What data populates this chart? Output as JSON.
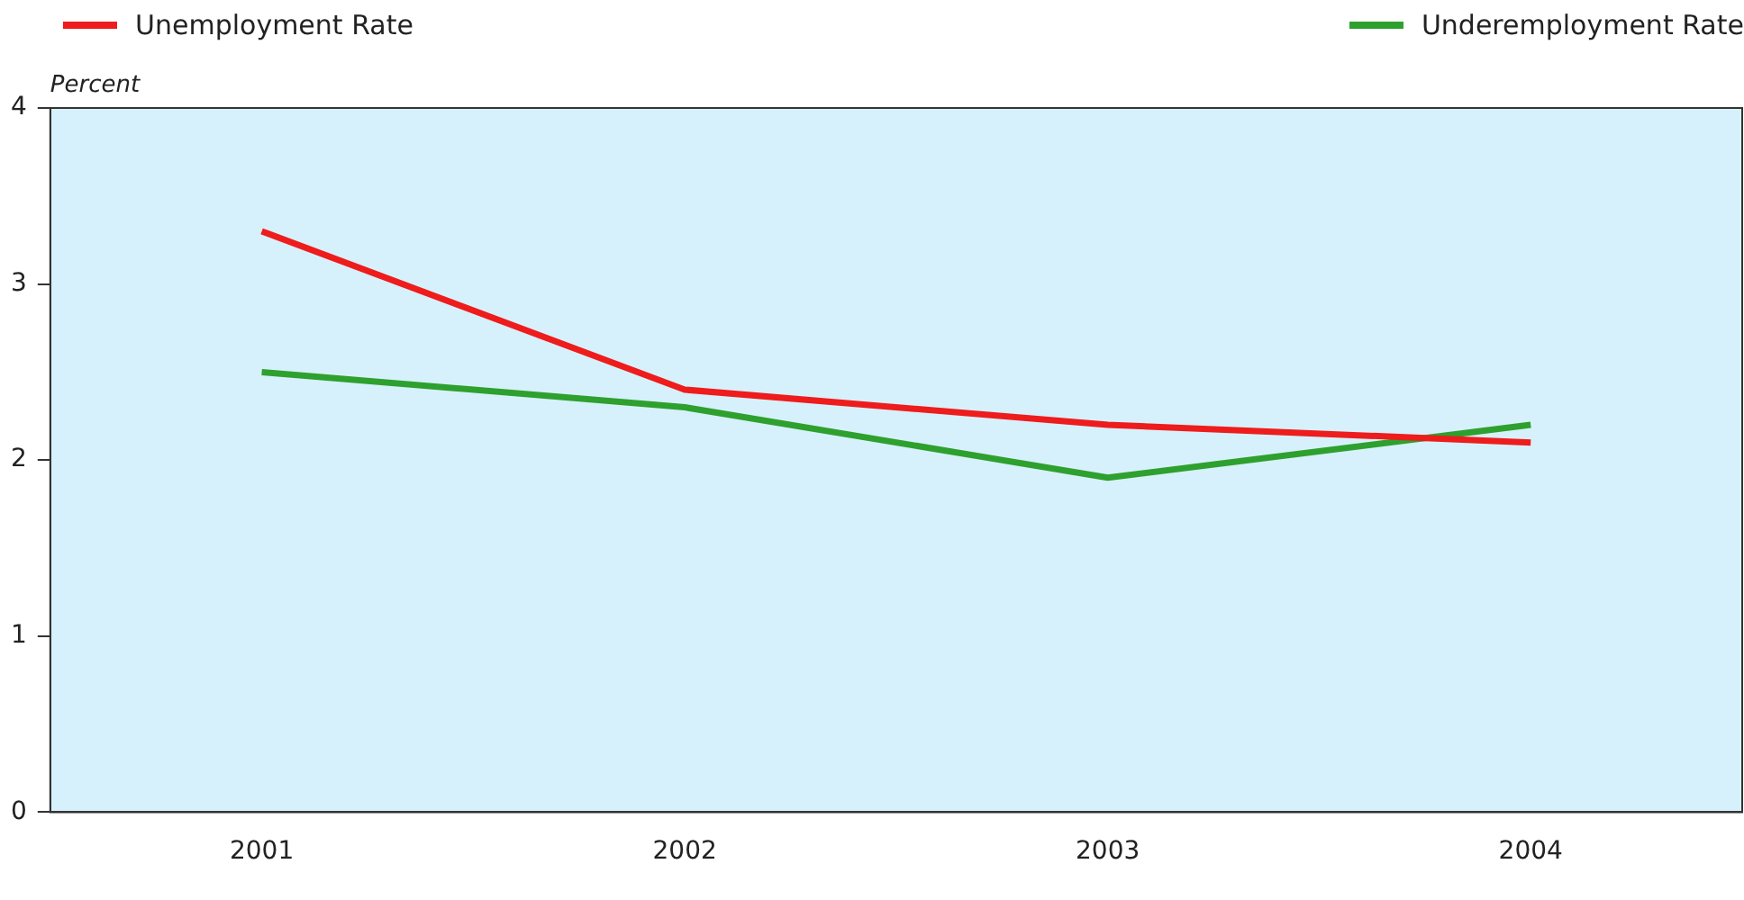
{
  "chart_data": {
    "type": "line",
    "ylabel": "Percent",
    "categories": [
      "2001",
      "2002",
      "2003",
      "2004"
    ],
    "series": [
      {
        "name": "Unemployment Rate",
        "color": "#ee1c1c",
        "values": [
          3.3,
          2.4,
          2.2,
          2.1
        ]
      },
      {
        "name": "Underemployment Rate",
        "color": "#2ea02e",
        "values": [
          2.5,
          2.3,
          1.9,
          2.2
        ]
      }
    ],
    "ylim": [
      0,
      4
    ],
    "yticks": [
      0,
      1,
      2,
      3,
      4
    ],
    "grid": false,
    "legend": "top",
    "marker": "none",
    "line_style": "solid"
  }
}
